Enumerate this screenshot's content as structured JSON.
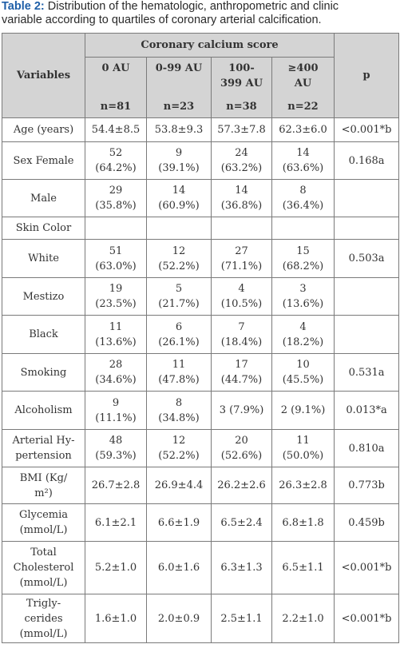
{
  "caption": {
    "label": "Table 2:",
    "line1_rest": " Distribution of the hematologic, anthropometric and clinic",
    "line2": "variable according to quartiles of coronary arterial calcification."
  },
  "header": {
    "variables": "Variables",
    "group": "Coronary calcium score",
    "p": "p",
    "cols": [
      {
        "l1": "0 AU",
        "l2": "",
        "n": "n=81"
      },
      {
        "l1": "0-99 AU",
        "l2": "",
        "n": "n=23"
      },
      {
        "l1": "100-",
        "l2": "399 AU",
        "n": "n=38"
      },
      {
        "l1": "≥400",
        "l2": "AU",
        "n": "n=22"
      }
    ]
  },
  "rows": [
    {
      "label": [
        "Age (years)"
      ],
      "cells": [
        [
          "54.4±8.5"
        ],
        [
          "53.8±9.3"
        ],
        [
          "57.3±7.8"
        ],
        [
          "62.3±6.0"
        ]
      ],
      "p": "<0.001*b"
    },
    {
      "label": [
        "Sex Female"
      ],
      "cells": [
        [
          "52",
          "(64.2%)"
        ],
        [
          "9",
          "(39.1%)"
        ],
        [
          "24",
          "(63.2%)"
        ],
        [
          "14",
          "(63.6%)"
        ]
      ],
      "p": "0.168a"
    },
    {
      "label": [
        "Male"
      ],
      "cells": [
        [
          "29",
          "(35.8%)"
        ],
        [
          "14",
          "(60.9%)"
        ],
        [
          "14",
          "(36.8%)"
        ],
        [
          "8",
          "(36.4%)"
        ]
      ],
      "p": ""
    },
    {
      "label": [
        "Skin Color"
      ],
      "cells": [
        [
          ""
        ],
        [
          ""
        ],
        [
          ""
        ],
        [
          ""
        ]
      ],
      "p": ""
    },
    {
      "label": [
        "White"
      ],
      "cells": [
        [
          "51",
          "(63.0%)"
        ],
        [
          "12",
          "(52.2%)"
        ],
        [
          "27",
          "(71.1%)"
        ],
        [
          "15",
          "(68.2%)"
        ]
      ],
      "p": "0.503a"
    },
    {
      "label": [
        "Mestizo"
      ],
      "cells": [
        [
          "19",
          "(23.5%)"
        ],
        [
          "5",
          "(21.7%)"
        ],
        [
          "4",
          "(10.5%)"
        ],
        [
          "3",
          "(13.6%)"
        ]
      ],
      "p": ""
    },
    {
      "label": [
        "Black"
      ],
      "cells": [
        [
          "11",
          "(13.6%)"
        ],
        [
          "6",
          "(26.1%)"
        ],
        [
          "7",
          "(18.4%)"
        ],
        [
          "4",
          "(18.2%)"
        ]
      ],
      "p": ""
    },
    {
      "label": [
        "Smoking"
      ],
      "cells": [
        [
          "28",
          "(34.6%)"
        ],
        [
          "11",
          "(47.8%)"
        ],
        [
          "17",
          "(44.7%)"
        ],
        [
          "10",
          "(45.5%)"
        ]
      ],
      "p": "0.531a"
    },
    {
      "label": [
        "Alcoholism"
      ],
      "cells": [
        [
          "9",
          "(11.1%)"
        ],
        [
          "8",
          "(34.8%)"
        ],
        [
          "3 (7.9%)"
        ],
        [
          "2 (9.1%)"
        ]
      ],
      "p": "0.013*a"
    },
    {
      "label": [
        "Arterial Hy-",
        "pertension"
      ],
      "cells": [
        [
          "48",
          "(59.3%)"
        ],
        [
          "12",
          "(52.2%)"
        ],
        [
          "20",
          "(52.6%)"
        ],
        [
          "11",
          "(50.0%)"
        ]
      ],
      "p": "0.810a"
    },
    {
      "label": [
        "BMI (Kg/",
        "m²)"
      ],
      "cells": [
        [
          "26.7±2.8"
        ],
        [
          "26.9±4.4"
        ],
        [
          "26.2±2.6"
        ],
        [
          "26.3±2.8"
        ]
      ],
      "p": "0.773b"
    },
    {
      "label": [
        "Glycemia",
        "(mmol/L)"
      ],
      "cells": [
        [
          "6.1±2.1"
        ],
        [
          "6.6±1.9"
        ],
        [
          "6.5±2.4"
        ],
        [
          "6.8±1.8"
        ]
      ],
      "p": "0.459b"
    },
    {
      "label": [
        "Total",
        "Cholesterol",
        "(mmol/L)"
      ],
      "cells": [
        [
          "5.2±1.0"
        ],
        [
          "6.0±1.6"
        ],
        [
          "6.3±1.3"
        ],
        [
          "6.5±1.1"
        ]
      ],
      "p": "<0.001*b"
    },
    {
      "label": [
        "Trigly-",
        "cerides",
        "(mmol/L)"
      ],
      "cells": [
        [
          "1.6±1.0"
        ],
        [
          "2.0±0.9"
        ],
        [
          "2.5±1.1"
        ],
        [
          "2.2±1.0"
        ]
      ],
      "p": "<0.001*b"
    }
  ]
}
